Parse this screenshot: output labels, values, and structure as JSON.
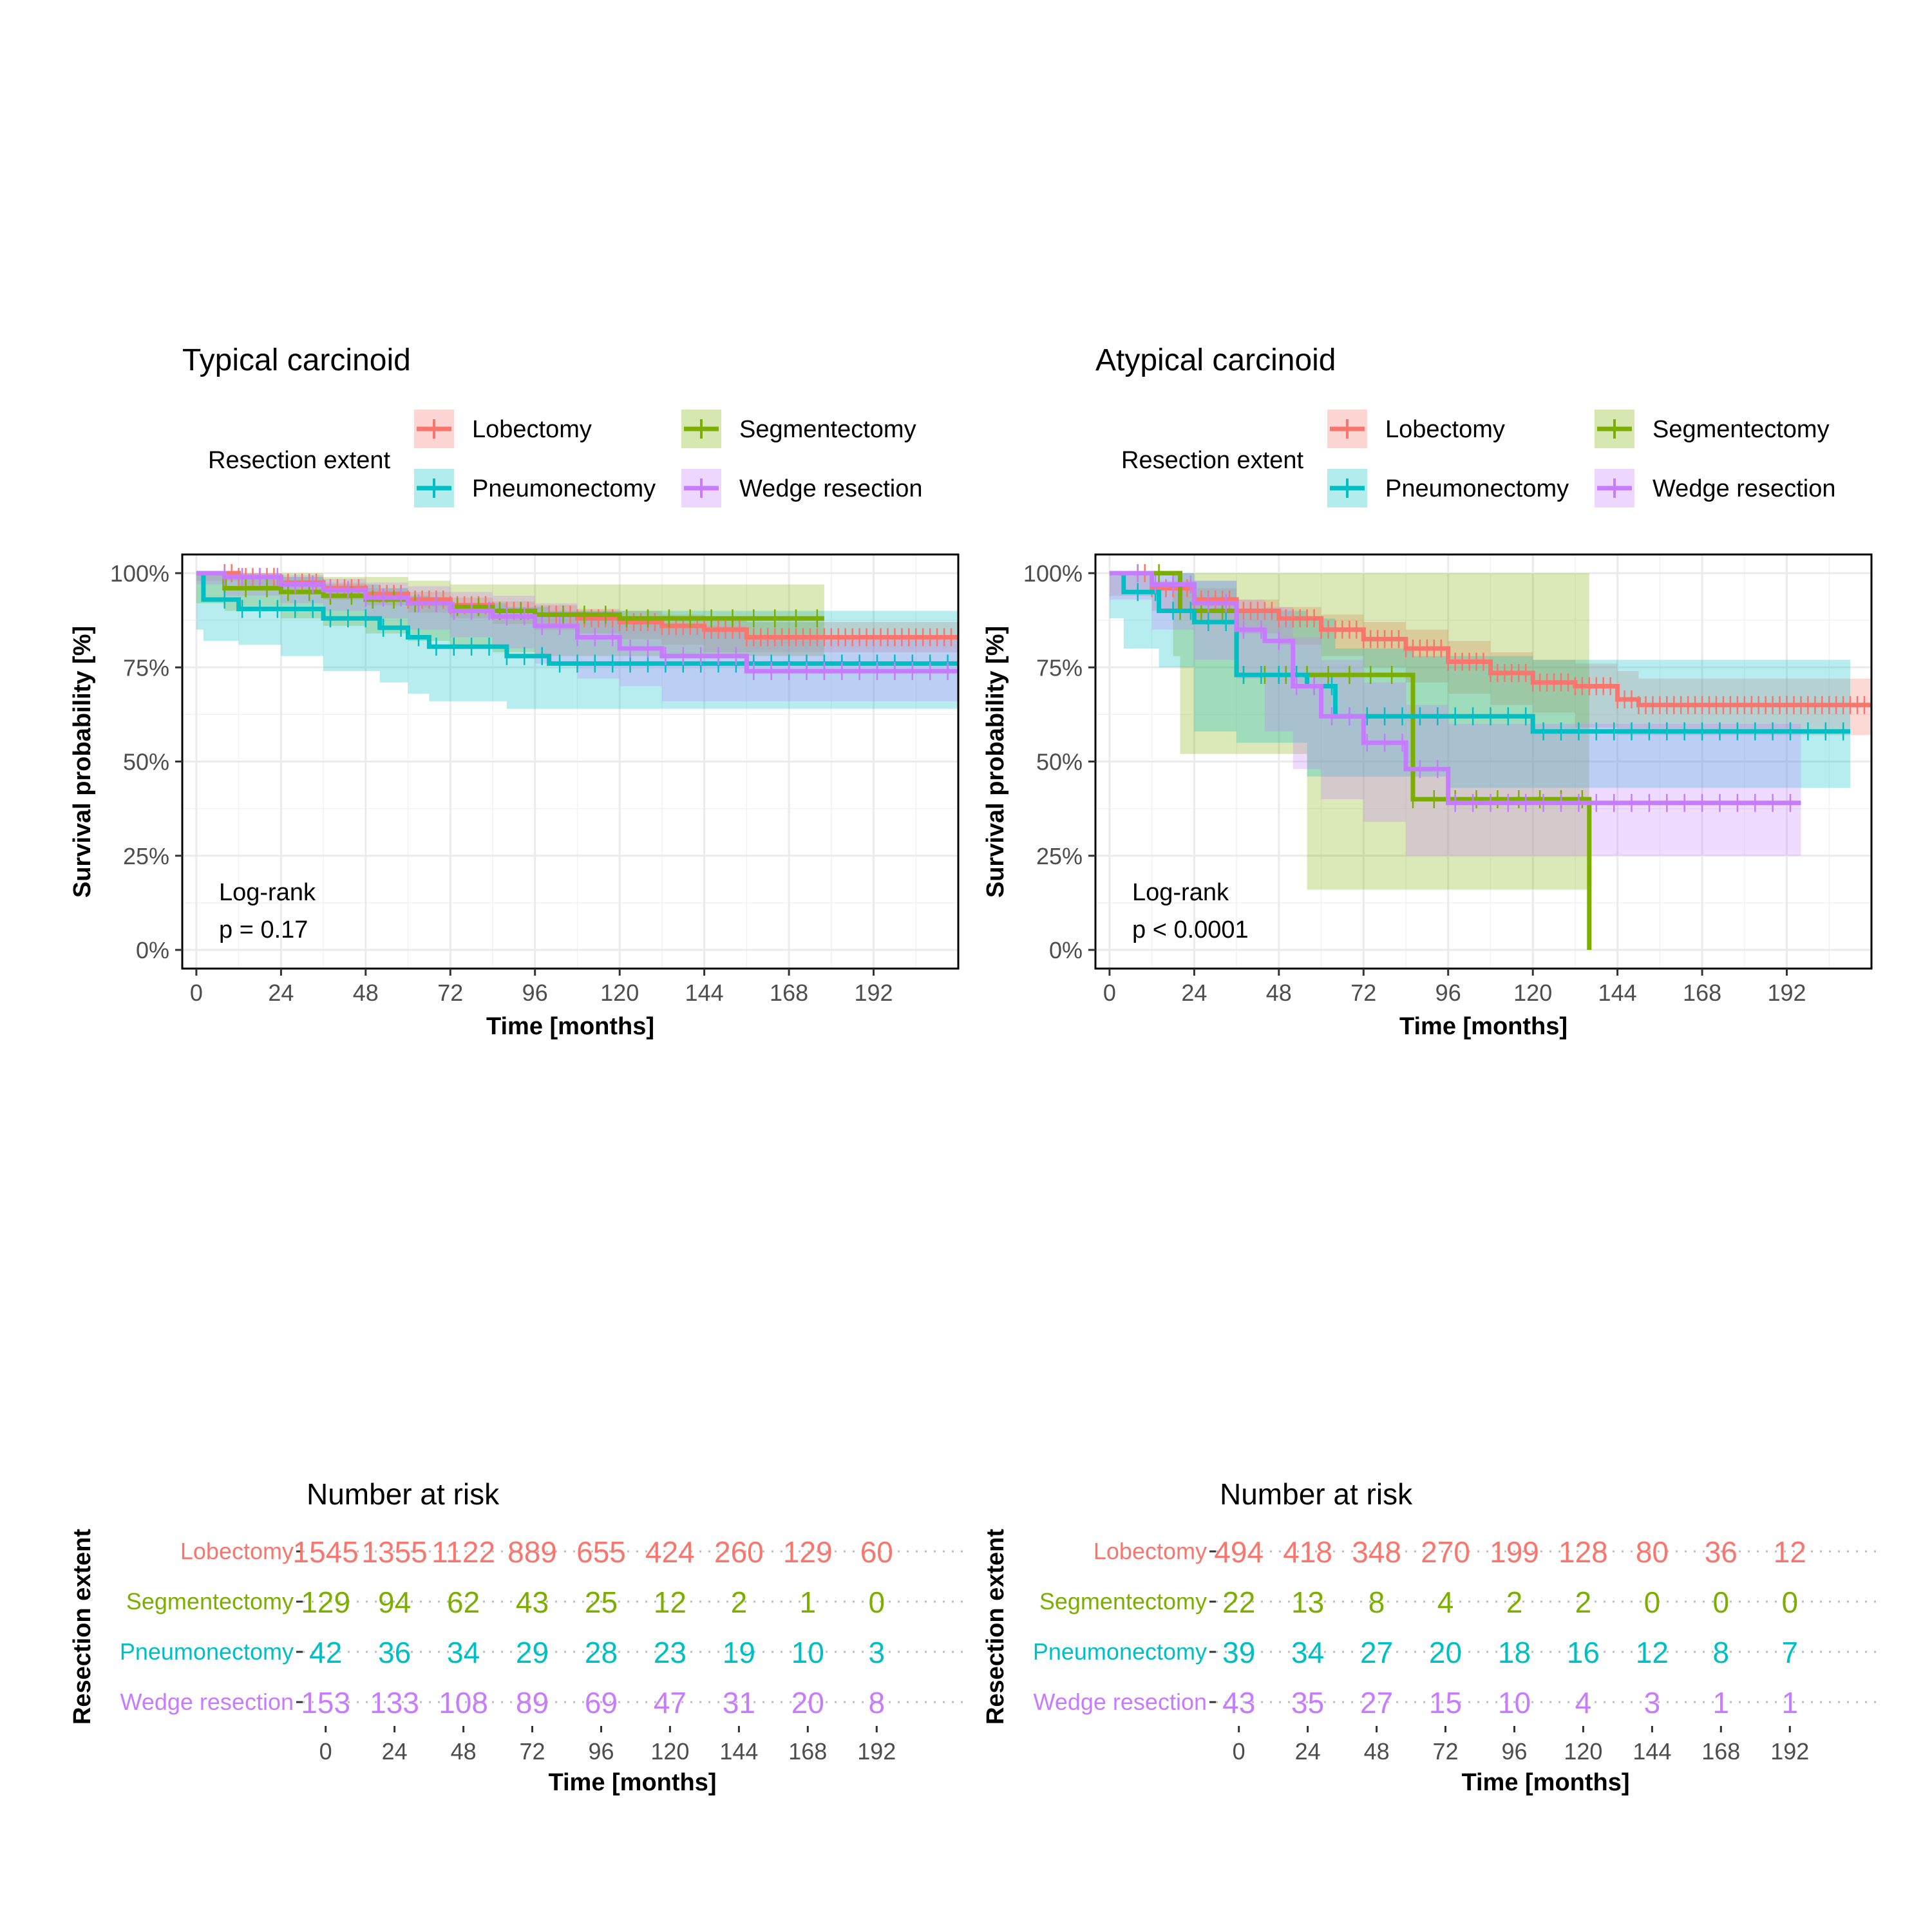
{
  "colors": {
    "Lobectomy": "#F8766D",
    "Segmentectomy": "#7CAE00",
    "Pneumonectomy": "#00BFC4",
    "Wedge resection": "#C77CFF"
  },
  "chart_data": [
    {
      "type": "line",
      "subtype": "kaplan-meier",
      "title": "Typical carcinoid",
      "xlabel": "Time [months]",
      "ylabel": "Survival probability [%]",
      "xlim": [
        -4,
        216
      ],
      "ylim": [
        0,
        100
      ],
      "x_ticks": [
        "0",
        "24",
        "48",
        "72",
        "96",
        "120",
        "144",
        "168",
        "192"
      ],
      "y_ticks": [
        "0%",
        "25%",
        "50%",
        "75%",
        "100%"
      ],
      "legend_title": "Resection extent",
      "legend_entries": [
        "Lobectomy",
        "Segmentectomy",
        "Pneumonectomy",
        "Wedge resection"
      ],
      "annotation": [
        "Log-rank",
        "p = 0.17"
      ],
      "series": [
        {
          "name": "Lobectomy",
          "x": [
            0,
            12,
            24,
            36,
            48,
            60,
            72,
            84,
            96,
            108,
            120,
            132,
            144,
            156,
            216
          ],
          "y": [
            100,
            99,
            97.5,
            96,
            94.5,
            93,
            91.5,
            90,
            89,
            88,
            87,
            86,
            85,
            83,
            83
          ],
          "ci_low": [
            100,
            98,
            96,
            94.5,
            93,
            91.5,
            89.5,
            88,
            86.5,
            85,
            84,
            82.5,
            81,
            79,
            79
          ],
          "ci_high": [
            100,
            100,
            99,
            97.5,
            96,
            95,
            93.5,
            92.5,
            91.5,
            90.5,
            90,
            89,
            88.5,
            87,
            87
          ]
        },
        {
          "name": "Segmentectomy",
          "x": [
            0,
            8,
            24,
            36,
            48,
            60,
            72,
            84,
            96,
            120,
            130,
            140,
            178
          ],
          "y": [
            100,
            96,
            95,
            94,
            93,
            92,
            91,
            90,
            89,
            88,
            88,
            88,
            88
          ],
          "ci_low": [
            100,
            92,
            90,
            88,
            86,
            84,
            82,
            80,
            79,
            78,
            78,
            78,
            78
          ],
          "ci_high": [
            100,
            100,
            100,
            99,
            99,
            98,
            97,
            97,
            97,
            97,
            97,
            97,
            97
          ]
        },
        {
          "name": "Pneumonectomy",
          "x": [
            0,
            2,
            12,
            24,
            36,
            52,
            60,
            66,
            88,
            100,
            130,
            216
          ],
          "y": [
            100,
            93,
            90.5,
            90.5,
            88,
            85.5,
            83,
            80.5,
            78,
            76,
            76,
            76
          ],
          "ci_low": [
            100,
            85,
            82,
            81,
            78,
            74,
            71,
            68,
            66,
            64,
            64,
            64
          ],
          "ci_high": [
            100,
            100,
            99,
            99,
            97,
            96,
            94,
            92,
            91,
            90,
            90,
            90
          ]
        },
        {
          "name": "Wedge resection",
          "x": [
            0,
            8,
            24,
            36,
            48,
            60,
            72,
            84,
            96,
            108,
            120,
            132,
            156,
            216
          ],
          "y": [
            100,
            99,
            97,
            95.5,
            93.5,
            92,
            90,
            88.5,
            86,
            83,
            80,
            78,
            74,
            74
          ],
          "ci_low": [
            100,
            97,
            94,
            92,
            90,
            88,
            85,
            83,
            80,
            76,
            72,
            70,
            66,
            66
          ],
          "ci_high": [
            100,
            100,
            99.5,
            98.5,
            97.5,
            96.5,
            95,
            94,
            92,
            90,
            88,
            86,
            83,
            83
          ]
        }
      ],
      "risk_table": {
        "title": "Number at risk",
        "ylabel": "Resection extent",
        "xlabel": "Time [months]",
        "times": [
          "0",
          "24",
          "48",
          "72",
          "96",
          "120",
          "144",
          "168",
          "192"
        ],
        "rows": [
          {
            "name": "Lobectomy",
            "values": [
              "1545",
              "1355",
              "1122",
              "889",
              "655",
              "424",
              "260",
              "129",
              "60"
            ]
          },
          {
            "name": "Segmentectomy",
            "values": [
              "129",
              "94",
              "62",
              "43",
              "25",
              "12",
              "2",
              "1",
              "0"
            ]
          },
          {
            "name": "Pneumonectomy",
            "values": [
              "42",
              "36",
              "34",
              "29",
              "28",
              "23",
              "19",
              "10",
              "3"
            ]
          },
          {
            "name": "Wedge resection",
            "values": [
              "153",
              "133",
              "108",
              "89",
              "69",
              "47",
              "31",
              "20",
              "8"
            ]
          }
        ]
      }
    },
    {
      "type": "line",
      "subtype": "kaplan-meier",
      "title": "Atypical carcinoid",
      "xlabel": "Time [months]",
      "ylabel": "Survival probability [%]",
      "xlim": [
        -4,
        216
      ],
      "ylim": [
        0,
        100
      ],
      "x_ticks": [
        "0",
        "24",
        "48",
        "72",
        "96",
        "120",
        "144",
        "168",
        "192"
      ],
      "y_ticks": [
        "0%",
        "25%",
        "50%",
        "75%",
        "100%"
      ],
      "legend_title": "Resection extent",
      "legend_entries": [
        "Lobectomy",
        "Segmentectomy",
        "Pneumonectomy",
        "Wedge resection"
      ],
      "annotation": [
        "Log-rank",
        "p < 0.0001"
      ],
      "series": [
        {
          "name": "Lobectomy",
          "x": [
            0,
            12,
            24,
            36,
            48,
            60,
            72,
            84,
            96,
            108,
            120,
            132,
            144,
            150,
            216
          ],
          "y": [
            100,
            96,
            93,
            90,
            88,
            85,
            82.5,
            80,
            76.5,
            73.5,
            71,
            70,
            66.5,
            65,
            65
          ],
          "ci_low": [
            100,
            94,
            90,
            87,
            84,
            81,
            78,
            75,
            71,
            68,
            65,
            63,
            59,
            57,
            57
          ],
          "ci_high": [
            100,
            98,
            96,
            93,
            91,
            89,
            87,
            85,
            82,
            79,
            77,
            76,
            74,
            72,
            72
          ]
        },
        {
          "name": "Segmentectomy",
          "x": [
            0,
            18,
            20,
            36,
            56,
            86,
            132,
            136,
            136
          ],
          "y": [
            100,
            100,
            90,
            73,
            73,
            40,
            40,
            40,
            0
          ],
          "ci_low": [
            100,
            100,
            78,
            52,
            52,
            16,
            16,
            16,
            0
          ],
          "ci_high": [
            100,
            100,
            100,
            100,
            100,
            100,
            100,
            100,
            100
          ]
        },
        {
          "name": "Pneumonectomy",
          "x": [
            0,
            4,
            14,
            24,
            36,
            56,
            64,
            86,
            96,
            120,
            150,
            210
          ],
          "y": [
            100,
            95,
            90,
            87,
            73,
            70,
            62,
            62,
            62,
            58,
            58,
            58
          ],
          "ci_low": [
            100,
            88,
            80,
            75,
            58,
            55,
            46,
            46,
            46,
            43,
            43,
            43
          ],
          "ci_high": [
            100,
            100,
            100,
            98,
            90,
            88,
            80,
            78,
            78,
            77,
            77,
            77
          ]
        },
        {
          "name": "Wedge resection",
          "x": [
            0,
            12,
            24,
            36,
            44,
            52,
            60,
            72,
            84,
            96,
            120,
            150,
            196
          ],
          "y": [
            100,
            97,
            92,
            85,
            82,
            70,
            62,
            55,
            48,
            39,
            39,
            39,
            39
          ],
          "ci_low": [
            100,
            93,
            85,
            77,
            72,
            58,
            48,
            40,
            34,
            25,
            25,
            25,
            25
          ],
          "ci_high": [
            100,
            100,
            98,
            93,
            91,
            83,
            77,
            71,
            65,
            60,
            60,
            60,
            60
          ]
        }
      ],
      "risk_table": {
        "title": "Number at risk",
        "ylabel": "Resection extent",
        "xlabel": "Time [months]",
        "times": [
          "0",
          "24",
          "48",
          "72",
          "96",
          "120",
          "144",
          "168",
          "192"
        ],
        "rows": [
          {
            "name": "Lobectomy",
            "values": [
              "494",
              "418",
              "348",
              "270",
              "199",
              "128",
              "80",
              "36",
              "12"
            ]
          },
          {
            "name": "Segmentectomy",
            "values": [
              "22",
              "13",
              "8",
              "4",
              "2",
              "2",
              "0",
              "0",
              "0"
            ]
          },
          {
            "name": "Pneumonectomy",
            "values": [
              "39",
              "34",
              "27",
              "20",
              "18",
              "16",
              "12",
              "8",
              "7"
            ]
          },
          {
            "name": "Wedge resection",
            "values": [
              "43",
              "35",
              "27",
              "15",
              "10",
              "4",
              "3",
              "1",
              "1"
            ]
          }
        ]
      }
    }
  ]
}
